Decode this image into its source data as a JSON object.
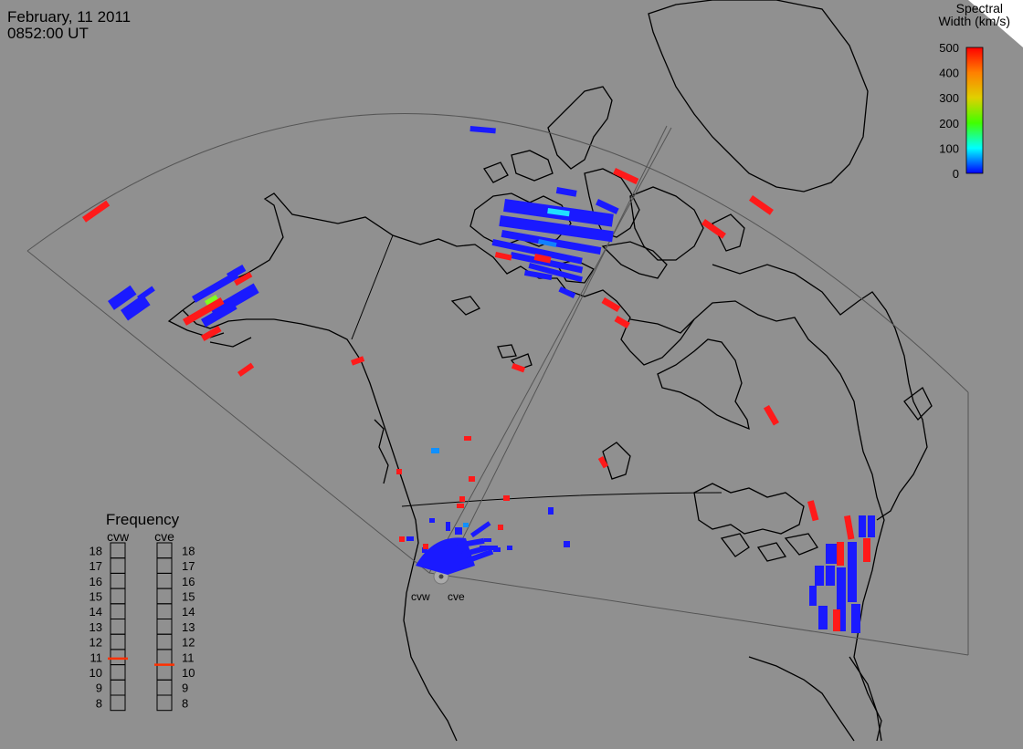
{
  "header": {
    "date": "February, 11 2011",
    "time": "0852:00 UT"
  },
  "colorbar": {
    "title_line1": "Spectral",
    "title_line2": "Width (km/s)",
    "ticks": [
      "500",
      "400",
      "300",
      "200",
      "100",
      "0"
    ],
    "colors": [
      "#ff0000",
      "#ff8000",
      "#ffd000",
      "#40ff00",
      "#00ffff",
      "#0000ff"
    ]
  },
  "frequency": {
    "title": "Frequency",
    "radar_left": "cvw",
    "radar_right": "cve",
    "scale": [
      "18",
      "17",
      "16",
      "15",
      "14",
      "13",
      "12",
      "11",
      "10",
      "9",
      "8"
    ],
    "cvw_mhz": 10.9,
    "cve_mhz": 10.5,
    "indicator_color": "#ff3000"
  },
  "radar_labels": {
    "west": "cvw",
    "east": "cve"
  },
  "colors": {
    "background": "#909090",
    "coast": "#000000",
    "fov": "#505050",
    "low_width": "#1a1aff",
    "high_width": "#ff1a1a"
  }
}
